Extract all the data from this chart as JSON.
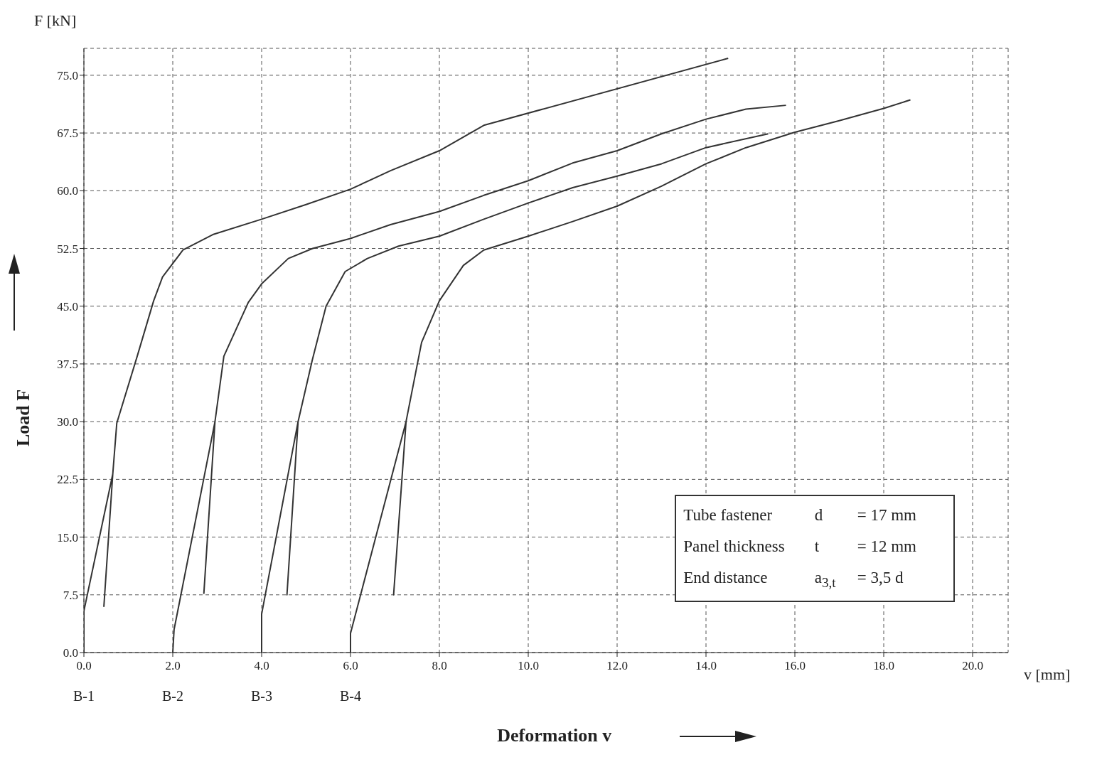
{
  "chart_data": {
    "type": "line",
    "xlabel": "Deformation  v",
    "ylabel": "Load  F",
    "annotations": [
      "F [kN]",
      "v [mm]",
      "Tube fastener",
      "d",
      "= 17 mm",
      "Panel thickness",
      "t",
      "= 12 mm",
      "End distance",
      "a$_{3,t}$",
      "= 3,5 d"
    ],
    "xlim": [
      0,
      20.8
    ],
    "ylim": [
      0,
      78.5
    ],
    "xticks": [
      {
        "value": 0,
        "label": "0.0"
      },
      {
        "value": 2,
        "label": "2.0"
      },
      {
        "value": 4,
        "label": "4.0"
      },
      {
        "value": 6,
        "label": "6.0"
      },
      {
        "value": 8,
        "label": "8.0"
      },
      {
        "value": 10,
        "label": "10.0"
      },
      {
        "value": 12,
        "label": "12.0"
      },
      {
        "value": 14,
        "label": "14.0"
      },
      {
        "value": 16,
        "label": "16.0"
      },
      {
        "value": 18,
        "label": "18.0"
      },
      {
        "value": 20,
        "label": "20.0"
      }
    ],
    "yticks": [
      {
        "value": 0,
        "label": "0.0"
      },
      {
        "value": 7.5,
        "label": "7.5"
      },
      {
        "value": 15,
        "label": "15.0"
      },
      {
        "value": 22.5,
        "label": "22.5"
      },
      {
        "value": 30,
        "label": "30.0"
      },
      {
        "value": 37.5,
        "label": "37.5"
      },
      {
        "value": 45,
        "label": "45.0"
      },
      {
        "value": 52.5,
        "label": "52.5"
      },
      {
        "value": 60,
        "label": "60.0"
      },
      {
        "value": 67.5,
        "label": "67.5"
      },
      {
        "value": 75,
        "label": "75.0"
      }
    ],
    "grid": true,
    "marker": "none",
    "line_style": "solid",
    "series": [
      {
        "name": "B-1",
        "color": "#333333",
        "x": [
          0,
          0,
          0.65,
          0.45,
          0.65,
          0.74,
          1.2,
          1.57,
          1.77,
          2.23,
          2.9,
          4,
          5,
          6,
          6.9,
          8,
          9,
          14.5
        ],
        "values": [
          0,
          5.4,
          23.2,
          6,
          23.2,
          29.8,
          38.5,
          45.7,
          48.8,
          52.3,
          54.3,
          56.3,
          58.2,
          60.2,
          62.6,
          65.2,
          68.5,
          77.2
        ]
      },
      {
        "name": "B-2",
        "color": "#333333",
        "x": [
          2,
          2.03,
          2.95,
          2.7,
          2.95,
          3.15,
          3.7,
          4,
          4.6,
          5.15,
          6,
          6.9,
          8,
          9,
          10,
          11,
          12,
          13,
          14,
          14.9,
          15.8
        ],
        "values": [
          0,
          3,
          30,
          7.7,
          30,
          38.5,
          45.5,
          47.9,
          51.2,
          52.5,
          53.8,
          55.6,
          57.3,
          59.4,
          61.3,
          63.6,
          65.2,
          67.4,
          69.3,
          70.6,
          71.1
        ]
      },
      {
        "name": "B-3",
        "color": "#333333",
        "x": [
          4,
          4,
          4.82,
          4.57,
          4.82,
          5.14,
          5.45,
          5.88,
          6.38,
          7.08,
          8,
          9,
          10,
          11,
          12,
          13,
          14,
          15.4
        ],
        "values": [
          0,
          5,
          30,
          7.5,
          30,
          38,
          45,
          49.5,
          51.2,
          52.8,
          54.1,
          56.3,
          58.4,
          60.4,
          61.9,
          63.5,
          65.6,
          67.4
        ]
      },
      {
        "name": "B-4",
        "color": "#333333",
        "x": [
          6,
          6,
          7.25,
          6.97,
          7.25,
          7.6,
          8,
          8.54,
          9,
          10,
          11,
          12,
          13,
          14,
          14.9,
          16,
          17,
          18,
          18.6
        ],
        "values": [
          0,
          2.5,
          30,
          7.5,
          30,
          40.3,
          45.7,
          50.3,
          52.3,
          54.1,
          56,
          58,
          60.6,
          63.5,
          65.6,
          67.6,
          69.1,
          70.7,
          71.8
        ]
      }
    ]
  }
}
